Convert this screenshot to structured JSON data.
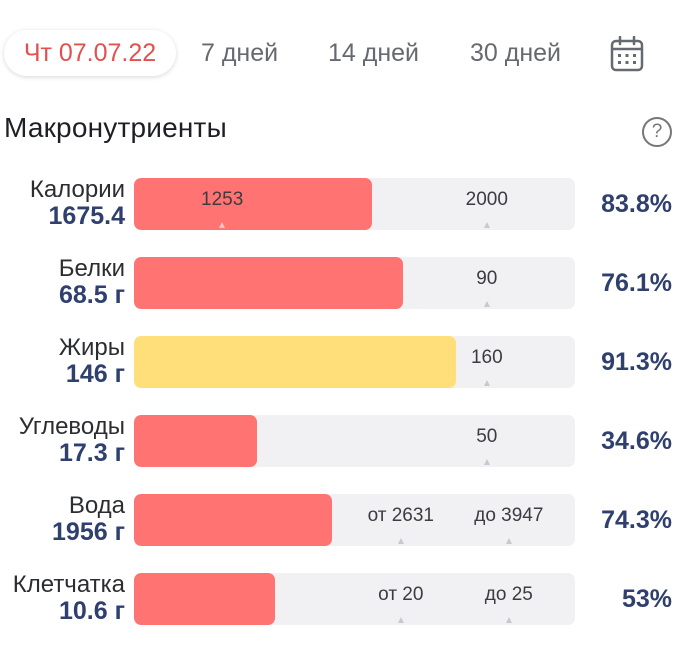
{
  "header": {
    "tabs": [
      {
        "label": "Чт 07.07.22",
        "active": true
      },
      {
        "label": "7 дней"
      },
      {
        "label": "14 дней"
      },
      {
        "label": "30 дней"
      }
    ],
    "calendar_icon": "calendar-icon"
  },
  "section": {
    "title": "Макронутриенты",
    "help_icon": "?"
  },
  "colors": {
    "red": "#ff7373",
    "yellow": "#ffdf7a",
    "accent": "#e2514d",
    "value_text": "#2f3f6e"
  },
  "rows": [
    {
      "label": "Калории",
      "value": "1675.4",
      "percent": "83.8%",
      "fill_color": "#ff7373",
      "fill_fraction": 0.54,
      "marks": [
        {
          "text": "1253",
          "fraction": 0.2,
          "on_fill": true
        },
        {
          "text": "2000",
          "fraction": 0.8
        }
      ]
    },
    {
      "label": "Белки",
      "value": "68.5 г",
      "percent": "76.1%",
      "fill_color": "#ff7373",
      "fill_fraction": 0.61,
      "marks": [
        {
          "text": "90",
          "fraction": 0.8
        }
      ]
    },
    {
      "label": "Жиры",
      "value": "146 г",
      "percent": "91.3%",
      "fill_color": "#ffdf7a",
      "fill_fraction": 0.73,
      "marks": [
        {
          "text": "160",
          "fraction": 0.8
        }
      ]
    },
    {
      "label": "Углеводы",
      "value": "17.3 г",
      "percent": "34.6%",
      "fill_color": "#ff7373",
      "fill_fraction": 0.28,
      "marks": [
        {
          "text": "50",
          "fraction": 0.8
        }
      ]
    },
    {
      "label": "Вода",
      "value": "1956 г",
      "percent": "74.3%",
      "fill_color": "#ff7373",
      "fill_fraction": 0.45,
      "marks": [
        {
          "text": "от 2631",
          "fraction": 0.605
        },
        {
          "text": "до 3947",
          "fraction": 0.85
        }
      ]
    },
    {
      "label": "Клетчатка",
      "value": "10.6 г",
      "percent": "53%",
      "fill_color": "#ff7373",
      "fill_fraction": 0.32,
      "marks": [
        {
          "text": "от 20",
          "fraction": 0.605
        },
        {
          "text": "до 25",
          "fraction": 0.85
        }
      ]
    }
  ]
}
